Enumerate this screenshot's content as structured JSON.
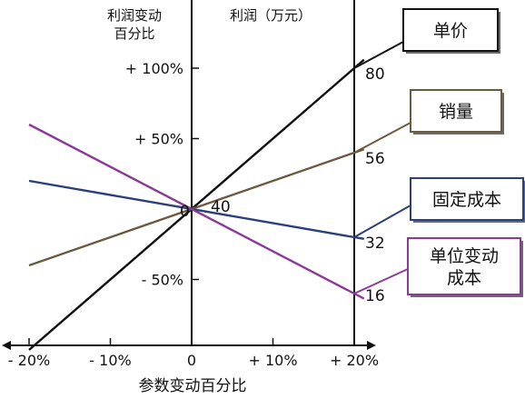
{
  "chart_data": {
    "type": "line",
    "title": "",
    "xlabel": "参数变动百分比",
    "ylabel_line1": "利润变动",
    "ylabel_line2": "百分比",
    "ylabel_right": "利润（万元）",
    "x": [
      -20,
      20
    ],
    "xlim": [
      -20,
      20
    ],
    "ylim": [
      -100,
      100
    ],
    "x_ticks": [
      {
        "v": -20,
        "label": "- 20%"
      },
      {
        "v": -10,
        "label": "- 10%"
      },
      {
        "v": 0,
        "label": "0"
      },
      {
        "v": 10,
        "label": "+ 10%"
      },
      {
        "v": 20,
        "label": "+ 20%"
      }
    ],
    "y_ticks": [
      {
        "v": 100,
        "label": "+ 100%"
      },
      {
        "v": 50,
        "label": "+ 50%"
      },
      {
        "v": -50,
        "label": "- 50%"
      }
    ],
    "base_label": "40",
    "series": [
      {
        "name": "单价",
        "color": "#111111",
        "values": [
          -100,
          100
        ],
        "end_label": "80"
      },
      {
        "name": "销量",
        "color": "#6b5a3e",
        "values": [
          -40,
          40
        ],
        "end_label": "56"
      },
      {
        "name": "固定成本",
        "color": "#2b3f7a",
        "values": [
          20,
          -20
        ],
        "end_label": "32"
      },
      {
        "name": "单位变动成本",
        "color": "#8b3a9a",
        "values": [
          60,
          -60
        ],
        "end_label": "16"
      }
    ],
    "callouts": [
      {
        "lines": [
          "单价"
        ],
        "series": "单价"
      },
      {
        "lines": [
          "销量"
        ],
        "series": "销量"
      },
      {
        "lines": [
          "固定成本"
        ],
        "series": "固定成本"
      },
      {
        "lines": [
          "单位变动",
          "成本"
        ],
        "series": "单位变动成本"
      }
    ]
  }
}
